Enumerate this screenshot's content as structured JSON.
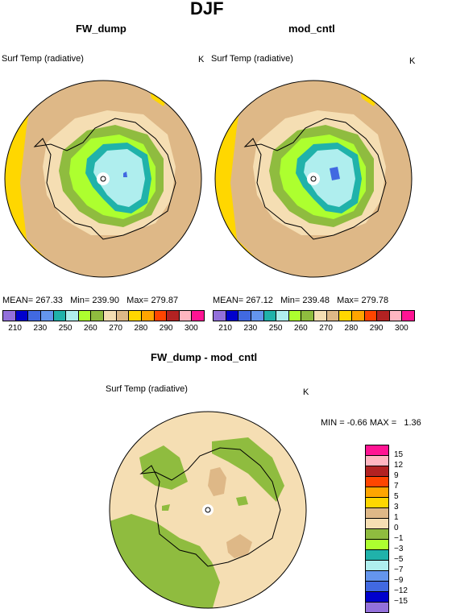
{
  "header": {
    "title": "DJF"
  },
  "panels": [
    {
      "title": "FW_dump",
      "variable": "Surf Temp (radiative)",
      "units": "K",
      "stats": {
        "mean_label": "MEAN=",
        "mean": "267.33",
        "min_label": "Min=",
        "min": "239.90",
        "max_label": "Max=",
        "max": "279.87"
      }
    },
    {
      "title": "mod_cntl",
      "variable": "Surf Temp (radiative)",
      "units": "K",
      "stats": {
        "mean_label": "MEAN=",
        "mean": "267.12",
        "min_label": "Min=",
        "min": "239.48",
        "max_label": "Max=",
        "max": "279.78"
      }
    }
  ],
  "diff_panel": {
    "title": "FW_dump - mod_cntl",
    "variable": "Surf Temp (radiative)",
    "units": "K",
    "stats": {
      "min_label": "MIN =",
      "min": "-0.66",
      "max_label": "MAX =",
      "max": "1.36"
    }
  },
  "colorbar_top": {
    "colors": [
      "#9370db",
      "#0000cd",
      "#4169e1",
      "#6495ed",
      "#20b2aa",
      "#afeeee",
      "#adff2f",
      "#8fbc3f",
      "#f5deb3",
      "#deb887",
      "#ffd700",
      "#ffa500",
      "#ff4500",
      "#b22222",
      "#ffb6c1",
      "#ff1493"
    ],
    "labels": [
      "210",
      "230",
      "250",
      "260",
      "270",
      "280",
      "290",
      "300"
    ]
  },
  "colorbar_diff": {
    "colors": [
      "#ff1493",
      "#ffb6c1",
      "#b22222",
      "#ff4500",
      "#ffa500",
      "#ffd700",
      "#deb887",
      "#f5deb3",
      "#8fbc3f",
      "#adff2f",
      "#20b2aa",
      "#afeeee",
      "#6495ed",
      "#4169e1",
      "#0000cd",
      "#9370db"
    ],
    "labels": [
      "15",
      "12",
      "9",
      "7",
      "5",
      "3",
      "1",
      "0",
      "−1",
      "−3",
      "−5",
      "−7",
      "−9",
      "−12",
      "−15"
    ]
  }
}
